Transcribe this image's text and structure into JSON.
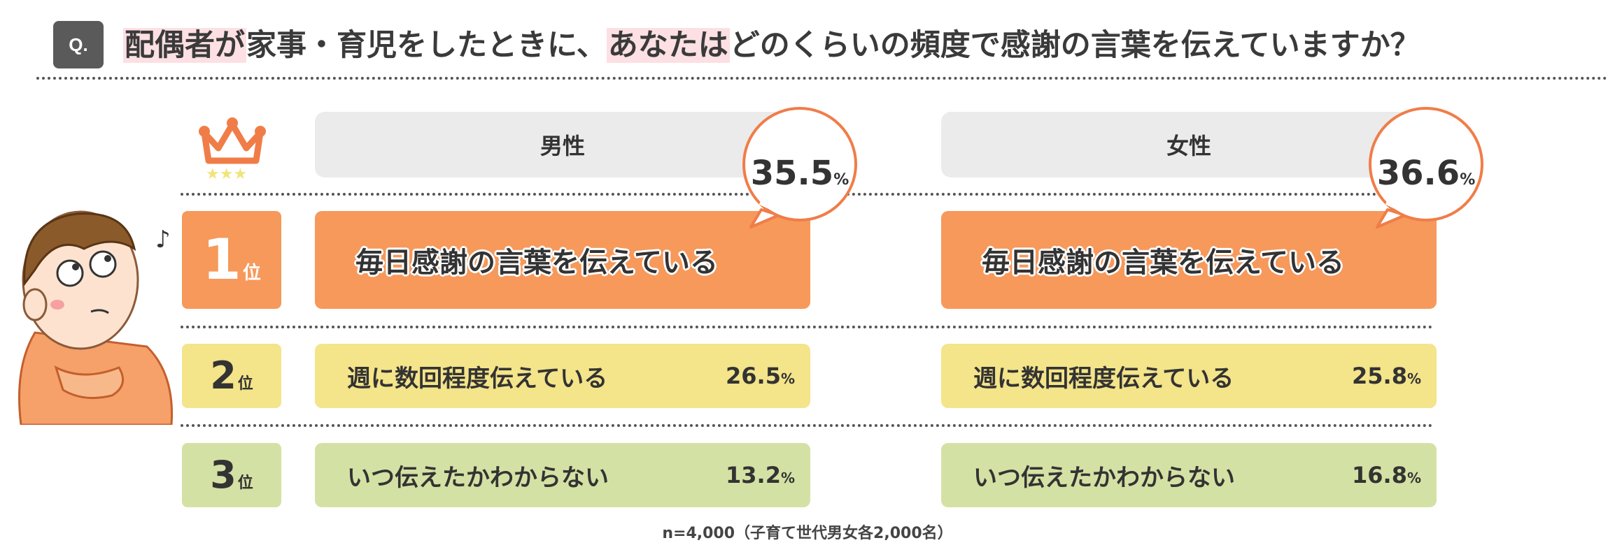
{
  "question": {
    "badge": "Q.",
    "segments": [
      {
        "text": "配偶者が",
        "highlight": true
      },
      {
        "text": "家事・育児をしたときに、",
        "highlight": false
      },
      {
        "text": "あなたは",
        "highlight": true
      },
      {
        "text": "どのくらいの頻度で感謝の言葉を伝えていますか？",
        "highlight": false
      }
    ]
  },
  "ranks": [
    {
      "num": "1",
      "suffix": "位"
    },
    {
      "num": "2",
      "suffix": "位"
    },
    {
      "num": "3",
      "suffix": "位"
    }
  ],
  "colors": {
    "rank1": "#f6995b",
    "rank2": "#f4e48a",
    "rank3": "#d4e1a4",
    "bubble_border": "#f07d48",
    "crown": "#f07d48",
    "stars": "#f1e47a"
  },
  "chart_data": {
    "type": "table",
    "series": [
      {
        "name": "男性",
        "items": [
          {
            "rank": 1,
            "label": "毎日感謝の言葉を伝えている",
            "value": 35.5
          },
          {
            "rank": 2,
            "label": "週に数回程度伝えている",
            "value": 26.5
          },
          {
            "rank": 3,
            "label": "いつ伝えたかわからない",
            "value": 13.2
          }
        ]
      },
      {
        "name": "女性",
        "items": [
          {
            "rank": 1,
            "label": "毎日感謝の言葉を伝えている",
            "value": 36.6
          },
          {
            "rank": 2,
            "label": "週に数回程度伝えている",
            "value": 25.8
          },
          {
            "rank": 3,
            "label": "いつ伝えたかわからない",
            "value": 16.8
          }
        ]
      }
    ],
    "display_values": {
      "men": [
        "35.5",
        "26.5",
        "13.2"
      ],
      "women": [
        "36.6",
        "25.8",
        "16.8"
      ]
    },
    "unit": "%"
  },
  "note": "n=4,000（子育て世代男女各2,000名）"
}
